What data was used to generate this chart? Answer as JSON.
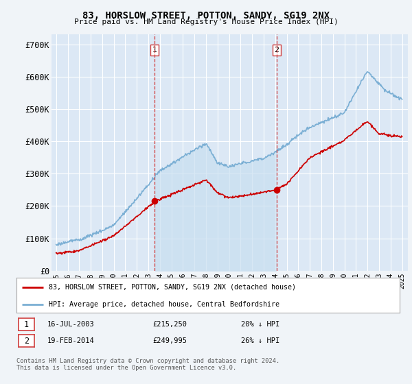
{
  "title": "83, HORSLOW STREET, POTTON, SANDY, SG19 2NX",
  "subtitle": "Price paid vs. HM Land Registry's House Price Index (HPI)",
  "ylabel_ticks": [
    "£0",
    "£100K",
    "£200K",
    "£300K",
    "£400K",
    "£500K",
    "£600K",
    "£700K"
  ],
  "ytick_values": [
    0,
    100000,
    200000,
    300000,
    400000,
    500000,
    600000,
    700000
  ],
  "ylim": [
    0,
    730000
  ],
  "xlim_start": 1994.6,
  "xlim_end": 2025.5,
  "hpi_color": "#7bafd4",
  "hpi_fill_color": "#cce0f0",
  "price_color": "#cc0000",
  "marker1_date": 2003.54,
  "marker1_label": "1",
  "marker1_price": 215250,
  "marker2_date": 2014.12,
  "marker2_label": "2",
  "marker2_price": 249995,
  "legend_line1": "83, HORSLOW STREET, POTTON, SANDY, SG19 2NX (detached house)",
  "legend_line2": "HPI: Average price, detached house, Central Bedfordshire",
  "table_row1": [
    "1",
    "16-JUL-2003",
    "£215,250",
    "20% ↓ HPI"
  ],
  "table_row2": [
    "2",
    "19-FEB-2014",
    "£249,995",
    "26% ↓ HPI"
  ],
  "footnote": "Contains HM Land Registry data © Crown copyright and database right 2024.\nThis data is licensed under the Open Government Licence v3.0.",
  "background_color": "#f0f4f8",
  "plot_bg_color": "#dce8f5",
  "grid_color": "#ffffff",
  "marker_line_color": "#d04040",
  "shade_between_color": "#c8dff0"
}
